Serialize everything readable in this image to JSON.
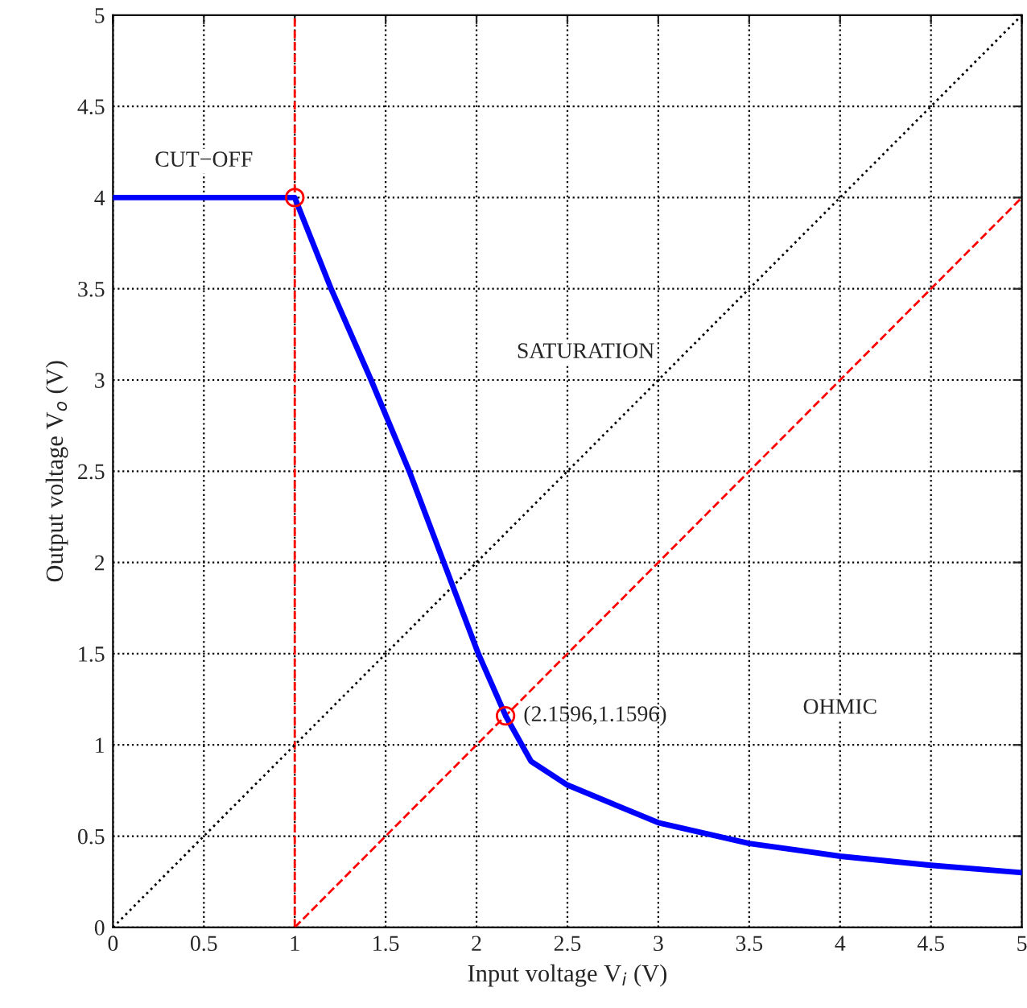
{
  "chart_data": {
    "type": "line",
    "xlabel": "Input voltage V$_{i}$ (V)",
    "ylabel": "Output voltage V$_{o}$ (V)",
    "xlim": [
      0,
      5
    ],
    "ylim": [
      0,
      5
    ],
    "xticks": [
      0,
      0.5,
      1,
      1.5,
      2,
      2.5,
      3,
      3.5,
      4,
      4.5,
      5
    ],
    "yticks": [
      0,
      0.5,
      1,
      1.5,
      2,
      2.5,
      3,
      3.5,
      4,
      4.5,
      5
    ],
    "grid": true,
    "series": [
      {
        "color": "#000000",
        "line_style": "dotted",
        "x": [
          0,
          5
        ],
        "values": [
          0,
          5
        ]
      },
      {
        "color": "#ff0000",
        "line_style": "dashed",
        "x": [
          1,
          5
        ],
        "values": [
          0,
          4
        ]
      },
      {
        "color": "#0000ff",
        "line_style": "solid",
        "x": [
          0,
          1,
          1.2,
          1.42,
          1.63,
          1.82,
          2.01,
          2.16,
          2.3,
          2.5,
          3,
          3.5,
          4,
          4.5,
          5
        ],
        "values": [
          4,
          4,
          3.5,
          3,
          2.5,
          2,
          1.5,
          1.16,
          0.91,
          0.78,
          0.574,
          0.46,
          0.39,
          0.34,
          0.3
        ]
      },
      {
        "type": "scatter",
        "color": "#ff0000",
        "marker": "circle",
        "x": [
          1,
          2.1596
        ],
        "values": [
          4,
          1.1596
        ]
      }
    ],
    "ref_lines": [
      {
        "axis": "x",
        "value": 1,
        "color": "#ff0000",
        "line_style": "dashed"
      }
    ],
    "annotations": [
      "CUT−OFF",
      "SATURATION",
      {
        "text": "(2.1596,1.1596)",
        "x": 2.1596,
        "y": 1.1596
      },
      "OHMIC"
    ]
  }
}
